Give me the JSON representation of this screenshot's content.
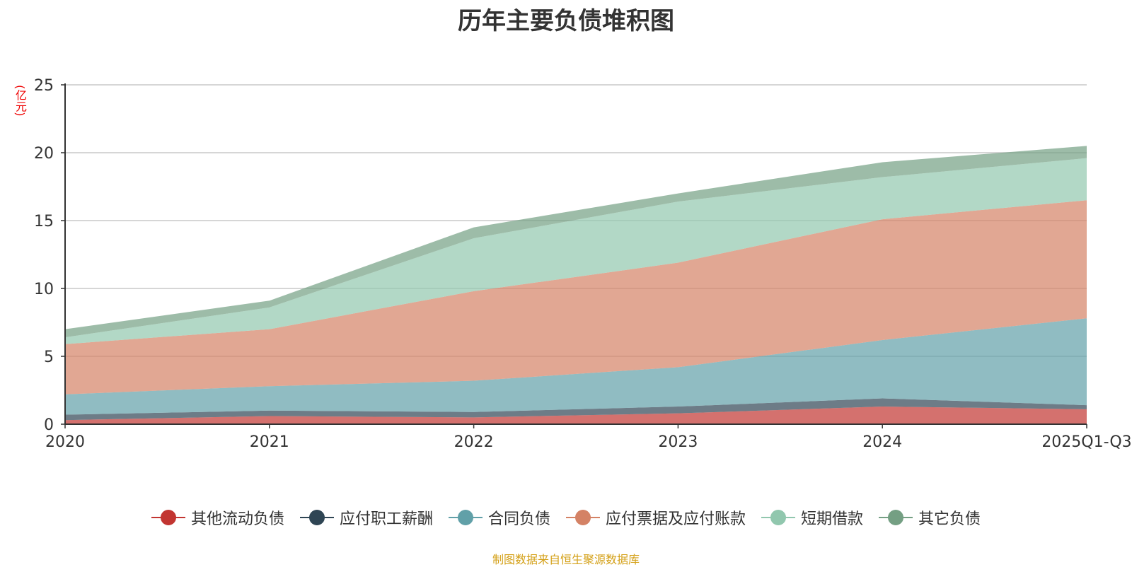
{
  "chart_data": {
    "type": "area",
    "stacked": true,
    "title": "历年主要负债堆积图",
    "ylabel": "(亿元)",
    "ylim": [
      0,
      25
    ],
    "yticks": [
      0,
      5,
      10,
      15,
      20,
      25
    ],
    "categories": [
      "2020",
      "2021",
      "2022",
      "2023",
      "2024",
      "2025Q1-Q3"
    ],
    "series": [
      {
        "name": "其他流动负债",
        "color": "#c23531",
        "values": [
          0.3,
          0.6,
          0.5,
          0.8,
          1.3,
          1.1
        ]
      },
      {
        "name": "应付职工薪酬",
        "color": "#2f4554",
        "values": [
          0.4,
          0.4,
          0.4,
          0.5,
          0.6,
          0.3
        ]
      },
      {
        "name": "合同负债",
        "color": "#61a0a8",
        "values": [
          1.5,
          1.8,
          2.3,
          2.9,
          4.3,
          6.4
        ]
      },
      {
        "name": "应付票据及应付账款",
        "color": "#d48265",
        "values": [
          3.7,
          4.2,
          6.6,
          7.7,
          8.9,
          8.7
        ]
      },
      {
        "name": "短期借款",
        "color": "#91c7ae",
        "values": [
          0.5,
          1.6,
          3.9,
          4.5,
          3.1,
          3.1
        ]
      },
      {
        "name": "其它负债",
        "color": "#749f83",
        "values": [
          0.6,
          0.5,
          0.8,
          0.6,
          1.1,
          0.9
        ]
      }
    ],
    "grid": true,
    "legend": "bottom-center"
  },
  "source_note": "制图数据来自恒生聚源数据库"
}
